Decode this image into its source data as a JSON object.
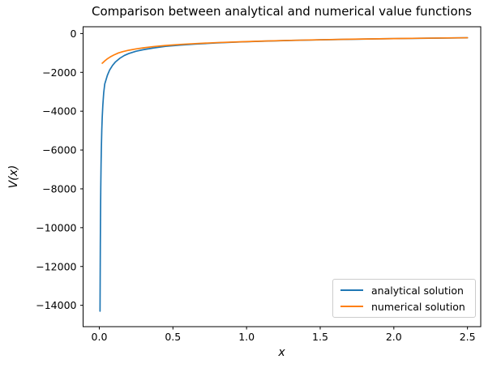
{
  "chart_data": {
    "type": "line",
    "title": "Comparison between analytical and numerical value functions",
    "xlabel": "x",
    "ylabel": "V(x)",
    "xlim": [
      -0.11,
      2.59
    ],
    "ylim": [
      -15100,
      350
    ],
    "grid": false,
    "legend_position": "lower right",
    "x_ticks": {
      "values": [
        0.0,
        0.5,
        1.0,
        1.5,
        2.0,
        2.5
      ],
      "labels": [
        "0.0",
        "0.5",
        "1.0",
        "1.5",
        "2.0",
        "2.5"
      ]
    },
    "y_ticks": {
      "values": [
        0,
        -2000,
        -4000,
        -6000,
        -8000,
        -10000,
        -12000,
        -14000
      ],
      "labels": [
        "0",
        "−2000",
        "−4000",
        "−6000",
        "−8000",
        "−10000",
        "−12000",
        "−14000"
      ]
    },
    "axis_color": "#000000",
    "series": [
      {
        "name": "analytical solution",
        "color": "#1f77b4",
        "points": [
          [
            0.005,
            -14300
          ],
          [
            0.006,
            -12500
          ],
          [
            0.007,
            -10900
          ],
          [
            0.008,
            -9700
          ],
          [
            0.009,
            -8750
          ],
          [
            0.01,
            -7950
          ],
          [
            0.012,
            -6750
          ],
          [
            0.014,
            -5900
          ],
          [
            0.017,
            -4950
          ],
          [
            0.02,
            -4300
          ],
          [
            0.024,
            -3700
          ],
          [
            0.03,
            -3050
          ],
          [
            0.037,
            -2600
          ],
          [
            0.045,
            -2400
          ],
          [
            0.055,
            -2150
          ],
          [
            0.07,
            -1880
          ],
          [
            0.09,
            -1640
          ],
          [
            0.11,
            -1460
          ],
          [
            0.14,
            -1270
          ],
          [
            0.17,
            -1130
          ],
          [
            0.2,
            -1030
          ],
          [
            0.25,
            -910
          ],
          [
            0.3,
            -830
          ],
          [
            0.37,
            -740
          ],
          [
            0.45,
            -660
          ],
          [
            0.55,
            -595
          ],
          [
            0.65,
            -545
          ],
          [
            0.8,
            -480
          ],
          [
            0.95,
            -435
          ],
          [
            1.1,
            -398
          ],
          [
            1.3,
            -356
          ],
          [
            1.5,
            -324
          ],
          [
            1.7,
            -296
          ],
          [
            1.9,
            -272
          ],
          [
            2.1,
            -252
          ],
          [
            2.3,
            -234
          ],
          [
            2.5,
            -218
          ]
        ]
      },
      {
        "name": "numerical solution",
        "color": "#ff7f0e",
        "points": [
          [
            0.02,
            -1530
          ],
          [
            0.03,
            -1460
          ],
          [
            0.04,
            -1390
          ],
          [
            0.05,
            -1330
          ],
          [
            0.065,
            -1250
          ],
          [
            0.08,
            -1180
          ],
          [
            0.1,
            -1100
          ],
          [
            0.13,
            -1000
          ],
          [
            0.16,
            -930
          ],
          [
            0.2,
            -860
          ],
          [
            0.25,
            -790
          ],
          [
            0.3,
            -735
          ],
          [
            0.37,
            -670
          ],
          [
            0.45,
            -615
          ],
          [
            0.55,
            -560
          ],
          [
            0.65,
            -520
          ],
          [
            0.8,
            -467
          ],
          [
            0.95,
            -428
          ],
          [
            1.1,
            -392
          ],
          [
            1.3,
            -352
          ],
          [
            1.5,
            -321
          ],
          [
            1.7,
            -293
          ],
          [
            1.9,
            -270
          ],
          [
            2.1,
            -250
          ],
          [
            2.3,
            -232
          ],
          [
            2.5,
            -216
          ]
        ]
      }
    ]
  }
}
